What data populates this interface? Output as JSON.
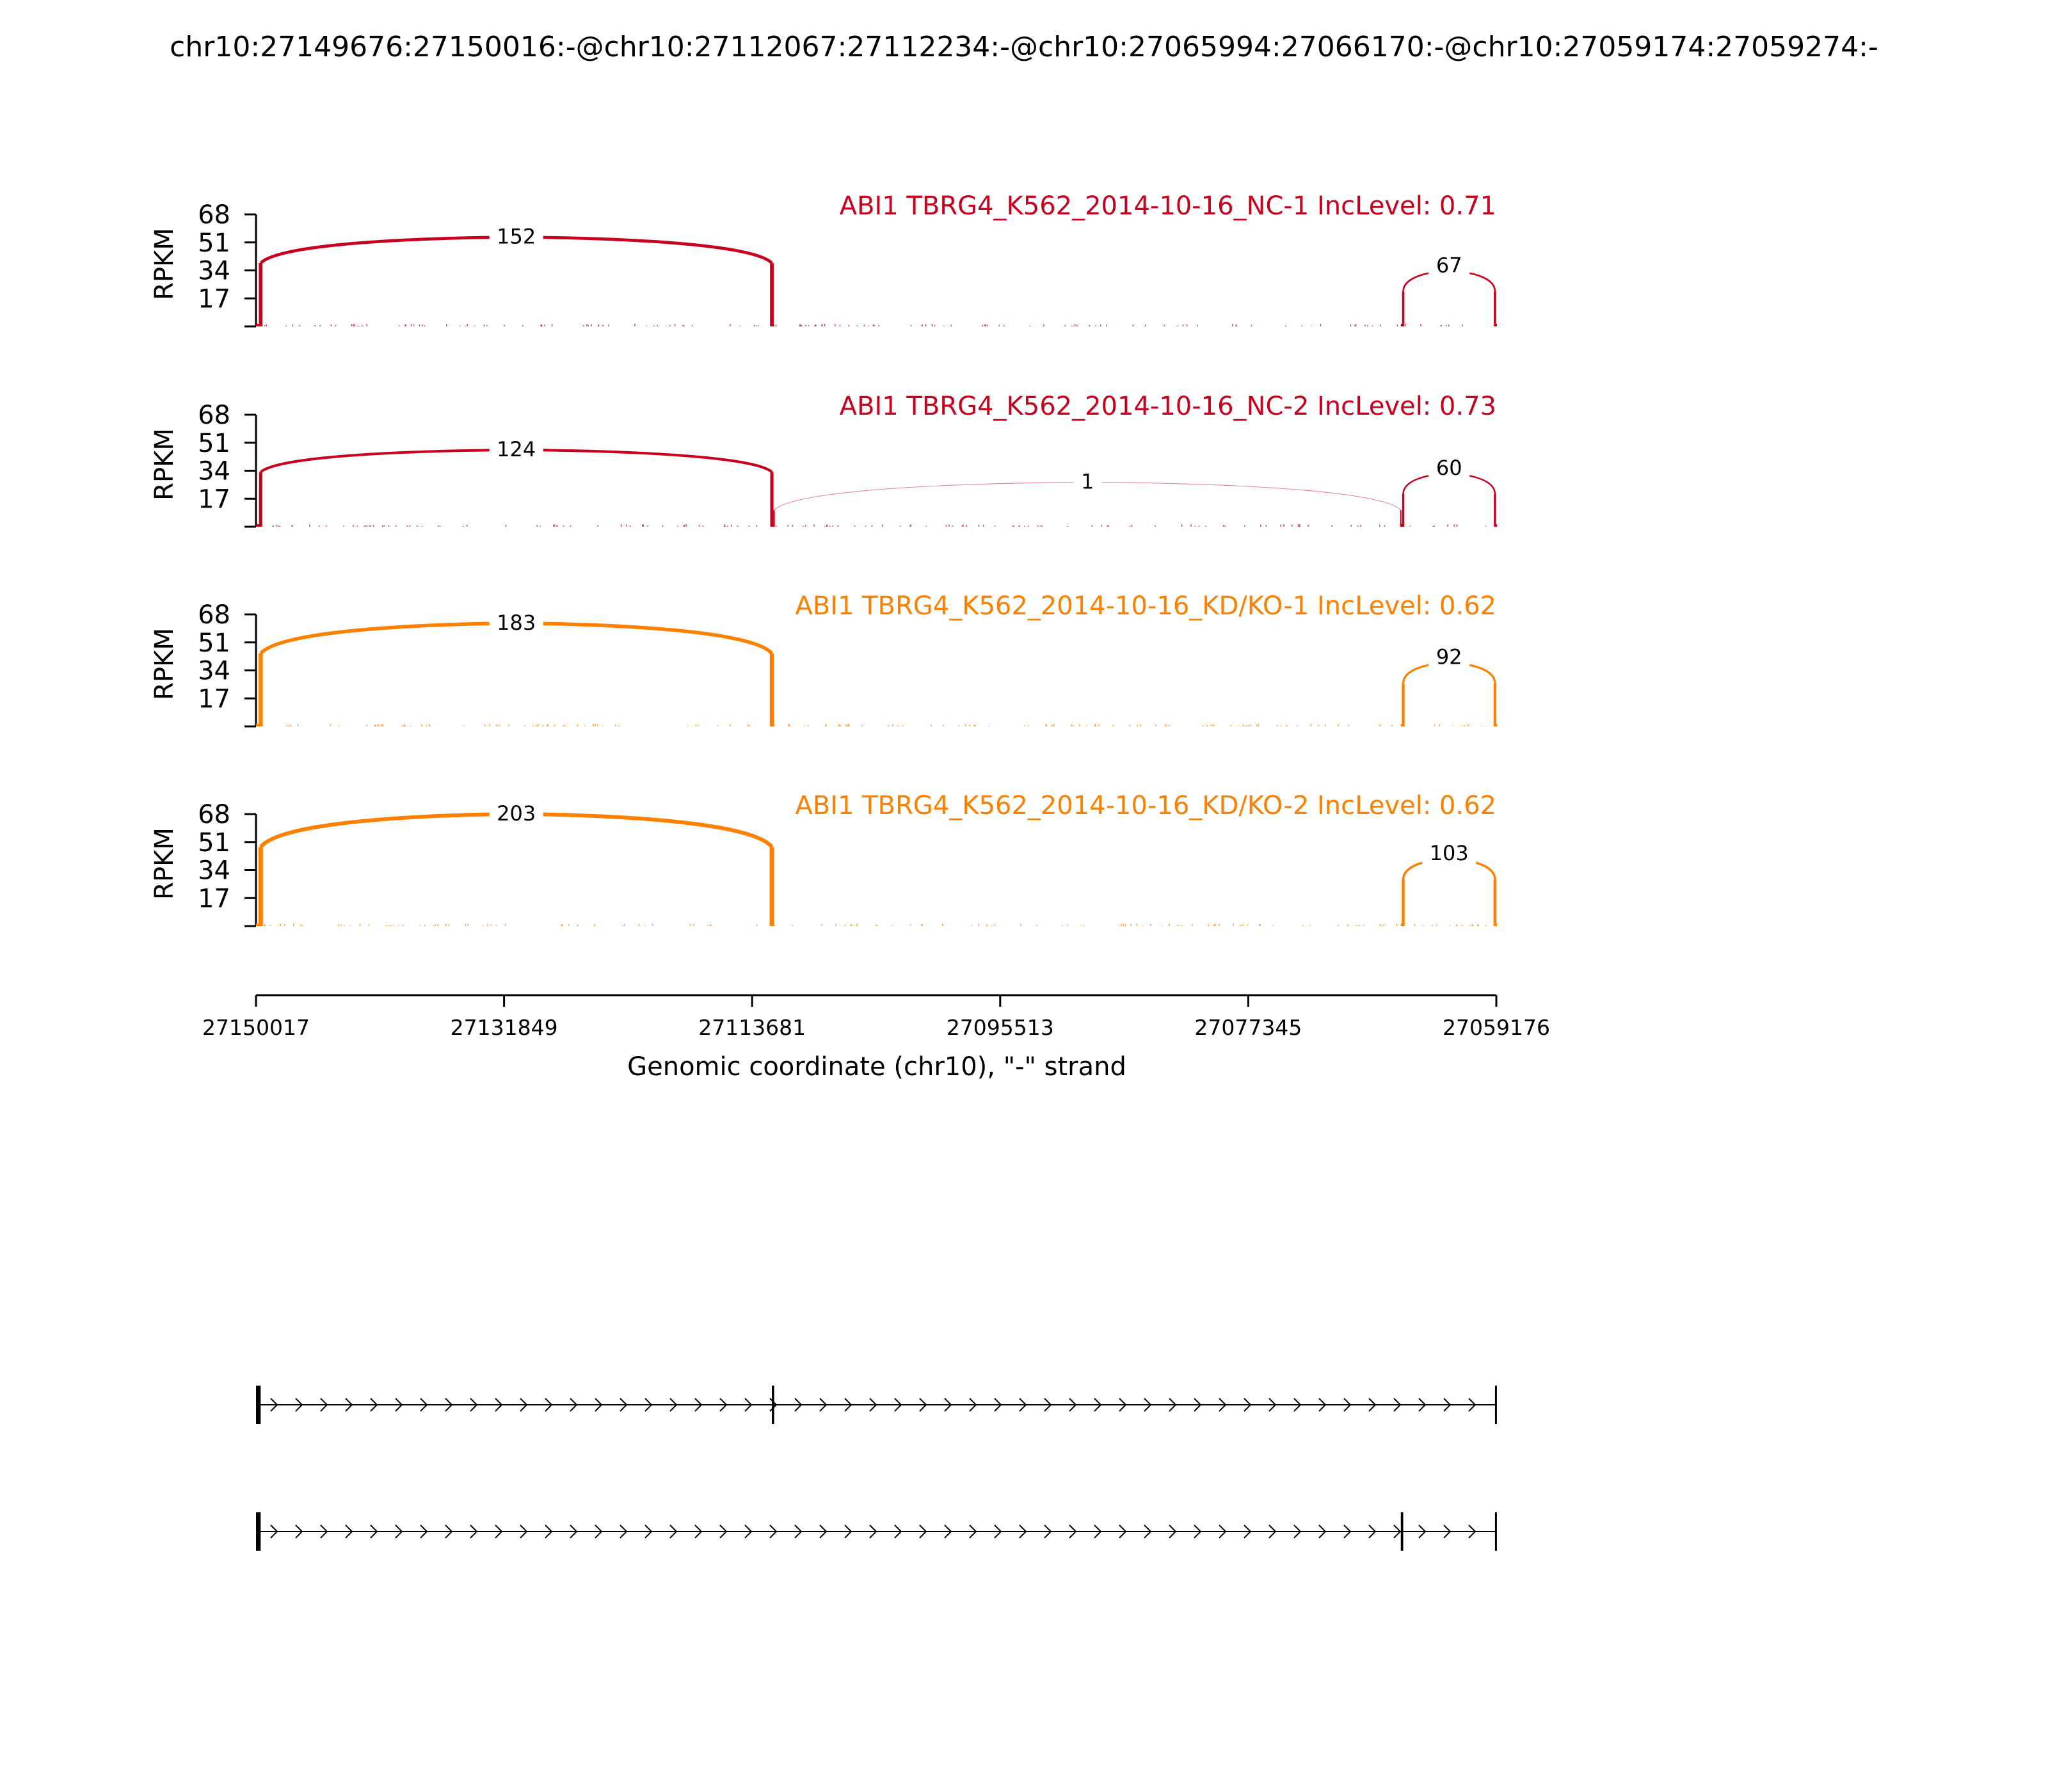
{
  "figure": {
    "title": "chr10:27149676:27150016:-@chr10:27112067:27112234:-@chr10:27065994:27066170:-@chr10:27059174:27059274:-",
    "ylabel": "RPKM",
    "xlabel": "Genomic coordinate (chr10), \"-\" strand",
    "colors": {
      "nc": "#c8001e",
      "kd": "#ff8000",
      "axis": "#000000"
    }
  },
  "chart_data": {
    "type": "sashimi",
    "x_axis": {
      "ticks": [
        "27150017",
        "27131849",
        "27113681",
        "27095513",
        "27077345",
        "27059176"
      ],
      "range": [
        27150017,
        27059176
      ],
      "strand": "-"
    },
    "y_axis": {
      "ticks": [
        17,
        34,
        51,
        68
      ],
      "range": [
        0,
        68
      ]
    },
    "samples": [
      {
        "label": "ABI1 TBRG4_K562_2014-10-16_NC-1 IncLevel: 0.71",
        "group": "nc",
        "junctions": [
          {
            "from": 27149676,
            "to": 27112234,
            "count": "152"
          },
          {
            "from": 27065994,
            "to": 27059274,
            "count": "67"
          }
        ]
      },
      {
        "label": "ABI1 TBRG4_K562_2014-10-16_NC-2 IncLevel: 0.73",
        "group": "nc",
        "junctions": [
          {
            "from": 27149676,
            "to": 27112234,
            "count": "124"
          },
          {
            "from": 27112067,
            "to": 27066170,
            "count": "1"
          },
          {
            "from": 27065994,
            "to": 27059274,
            "count": "60"
          }
        ]
      },
      {
        "label": "ABI1 TBRG4_K562_2014-10-16_KD/KO-1 IncLevel: 0.62",
        "group": "kd",
        "junctions": [
          {
            "from": 27149676,
            "to": 27112234,
            "count": "183"
          },
          {
            "from": 27065994,
            "to": 27059274,
            "count": "92"
          }
        ]
      },
      {
        "label": "ABI1 TBRG4_K562_2014-10-16_KD/KO-2 IncLevel: 0.62",
        "group": "kd",
        "junctions": [
          {
            "from": 27149676,
            "to": 27112234,
            "count": "203"
          },
          {
            "from": 27065994,
            "to": 27059274,
            "count": "103"
          }
        ]
      }
    ],
    "isoforms": [
      {
        "exons": [
          [
            27150016,
            27149676
          ],
          [
            27112234,
            27112067
          ],
          [
            27059274,
            27059174
          ]
        ]
      },
      {
        "exons": [
          [
            27150016,
            27149676
          ],
          [
            27066170,
            27065994
          ],
          [
            27059274,
            27059174
          ]
        ]
      }
    ]
  }
}
